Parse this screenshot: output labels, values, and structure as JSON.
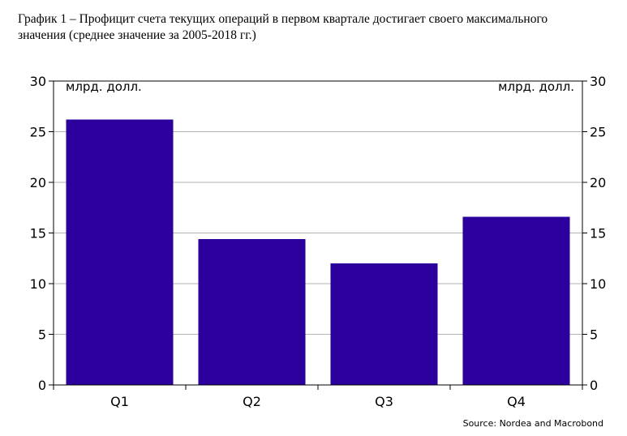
{
  "title_line1": "График 1 – Профицит счета текущих операций в первом квартале достигает своего максимального",
  "title_line2": "значения (среднее значение за 2005-2018 гг.)",
  "source": "Source: Nordea and Macrobond",
  "chart_data": {
    "type": "bar",
    "categories": [
      "Q1",
      "Q2",
      "Q3",
      "Q4"
    ],
    "values": [
      26.2,
      14.4,
      12.0,
      16.6
    ],
    "ylabel_left": "млрд. долл.",
    "ylabel_right": "млрд. долл.",
    "ylim": [
      0,
      30
    ],
    "yticks": [
      0,
      5,
      10,
      15,
      20,
      25,
      30
    ],
    "grid": true,
    "bar_color": "#2b009c"
  }
}
